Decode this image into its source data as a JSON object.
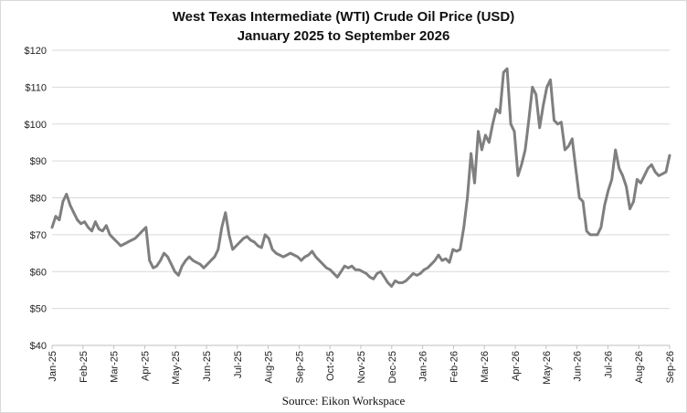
{
  "chart_data": {
    "type": "line",
    "title": "West Texas Intermediate (WTI) Crude Oil Price (USD)",
    "subtitle": "January 2025 to September 2026",
    "source": "Source: Eikon Workspace",
    "ylim": [
      40,
      120
    ],
    "y_ticks": [
      40,
      50,
      60,
      70,
      80,
      90,
      100,
      110,
      120
    ],
    "y_tick_labels": [
      "$40",
      "$50",
      "$60",
      "$70",
      "$80",
      "$90",
      "$100",
      "$110",
      "$120"
    ],
    "x_tick_labels": [
      "Jan-25",
      "Feb-25",
      "Mar-25",
      "Apr-25",
      "May-25",
      "Jun-25",
      "Jul-25",
      "Aug-25",
      "Sep-25",
      "Oct-25",
      "Nov-25",
      "Dec-25",
      "Jan-26",
      "Feb-26",
      "Mar-26",
      "Apr-26",
      "May-26",
      "Jun-26",
      "Jul-26",
      "Aug-26",
      "Sep-26"
    ],
    "grid": true,
    "series": [
      {
        "color": "#7f7f7f",
        "values": [
          72.0,
          75.0,
          74.0,
          79.0,
          81.0,
          78.0,
          76.0,
          74.0,
          73.0,
          73.5,
          72.0,
          71.0,
          73.5,
          71.5,
          71.0,
          72.5,
          70.0,
          69.0,
          68.0,
          67.0,
          67.5,
          68.0,
          68.5,
          69.0,
          70.0,
          71.0,
          72.0,
          63.0,
          61.0,
          61.5,
          63.0,
          65.0,
          64.0,
          62.0,
          60.0,
          59.0,
          61.5,
          63.0,
          64.0,
          63.0,
          62.5,
          62.0,
          61.0,
          62.0,
          63.0,
          64.0,
          66.0,
          72.0,
          76.0,
          70.0,
          66.0,
          67.0,
          68.0,
          69.0,
          69.5,
          68.5,
          68.0,
          67.0,
          66.5,
          70.0,
          69.0,
          66.0,
          65.0,
          64.5,
          64.0,
          64.5,
          65.0,
          64.5,
          64.0,
          63.0,
          64.0,
          64.5,
          65.5,
          64.0,
          63.0,
          62.0,
          61.0,
          60.5,
          59.5,
          58.5,
          60.0,
          61.5,
          61.0,
          61.5,
          60.5,
          60.5,
          60.0,
          59.5,
          58.5,
          58.0,
          59.5,
          60.0,
          58.5,
          57.0,
          56.0,
          57.5,
          57.0,
          57.0,
          57.5,
          58.5,
          59.5,
          59.0,
          59.5,
          60.5,
          61.0,
          62.0,
          63.0,
          64.5,
          63.0,
          63.5,
          62.5,
          66.0,
          65.5,
          66.0,
          72.0,
          80.0,
          92.0,
          84.0,
          98.0,
          93.0,
          97.0,
          95.0,
          100.0,
          104.0,
          103.0,
          114.0,
          115.0,
          100.0,
          98.0,
          86.0,
          89.0,
          93.0,
          101.0,
          110.0,
          108.0,
          99.0,
          105.0,
          110.0,
          112.0,
          101.0,
          100.0,
          100.5,
          93.0,
          94.0,
          96.0,
          88.0,
          80.0,
          79.0,
          71.0,
          70.0,
          70.0,
          70.0,
          72.0,
          78.0,
          82.0,
          85.0,
          93.0,
          88.0,
          86.0,
          83.0,
          77.0,
          79.0,
          85.0,
          84.0,
          86.0,
          88.0,
          89.0,
          87.0,
          86.0,
          86.5,
          87.0,
          91.5
        ]
      }
    ]
  }
}
